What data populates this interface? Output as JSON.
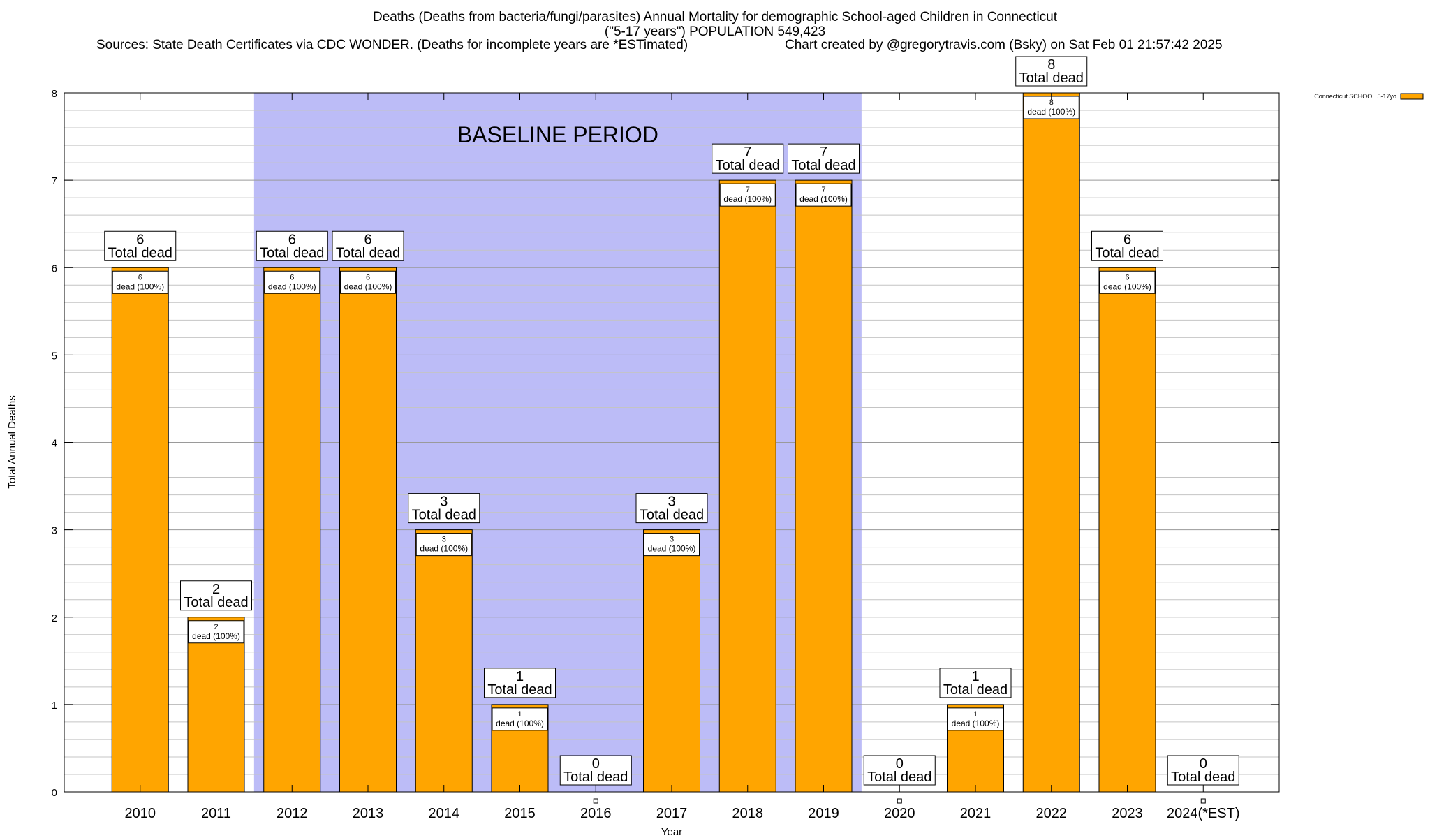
{
  "chart_data": {
    "type": "bar",
    "title": "Deaths (Deaths from bacteria/fungi/parasites) Annual Mortality for demographic School-aged Children in Connecticut",
    "subtitle": "(\"5-17 years\") POPULATION 549,423",
    "sources": "Sources: State Death Certificates via CDC WONDER. (Deaths for incomplete years are *ESTimated)",
    "credit": "Chart created by @gregorytravis.com (Bsky) on Sat Feb 01 21:57:42 2025",
    "xlabel": "Year",
    "ylabel": "Total Annual Deaths",
    "ylim": [
      0,
      8
    ],
    "y_ticks": [
      "0",
      "1",
      "2",
      "3",
      "4",
      "5",
      "6",
      "7",
      "8"
    ],
    "categories": [
      "2010",
      "2011",
      "2012",
      "2013",
      "2014",
      "2015",
      "2016",
      "2017",
      "2018",
      "2019",
      "2020",
      "2021",
      "2022",
      "2023",
      "2024(*EST)"
    ],
    "series": [
      {
        "name": "Connecticut SCHOOL 5-17yo",
        "color": "#ffa500",
        "values": [
          6,
          2,
          6,
          6,
          3,
          1,
          0,
          3,
          7,
          7,
          0,
          1,
          8,
          6,
          0
        ]
      }
    ],
    "total_label": "Total dead",
    "inner_label": "dead (100%)",
    "baseline": {
      "label": "BASELINE PERIOD",
      "from": "2012",
      "to": "2019",
      "color": "#bcbcf7"
    },
    "grid": true,
    "legend_position": "top-right"
  }
}
